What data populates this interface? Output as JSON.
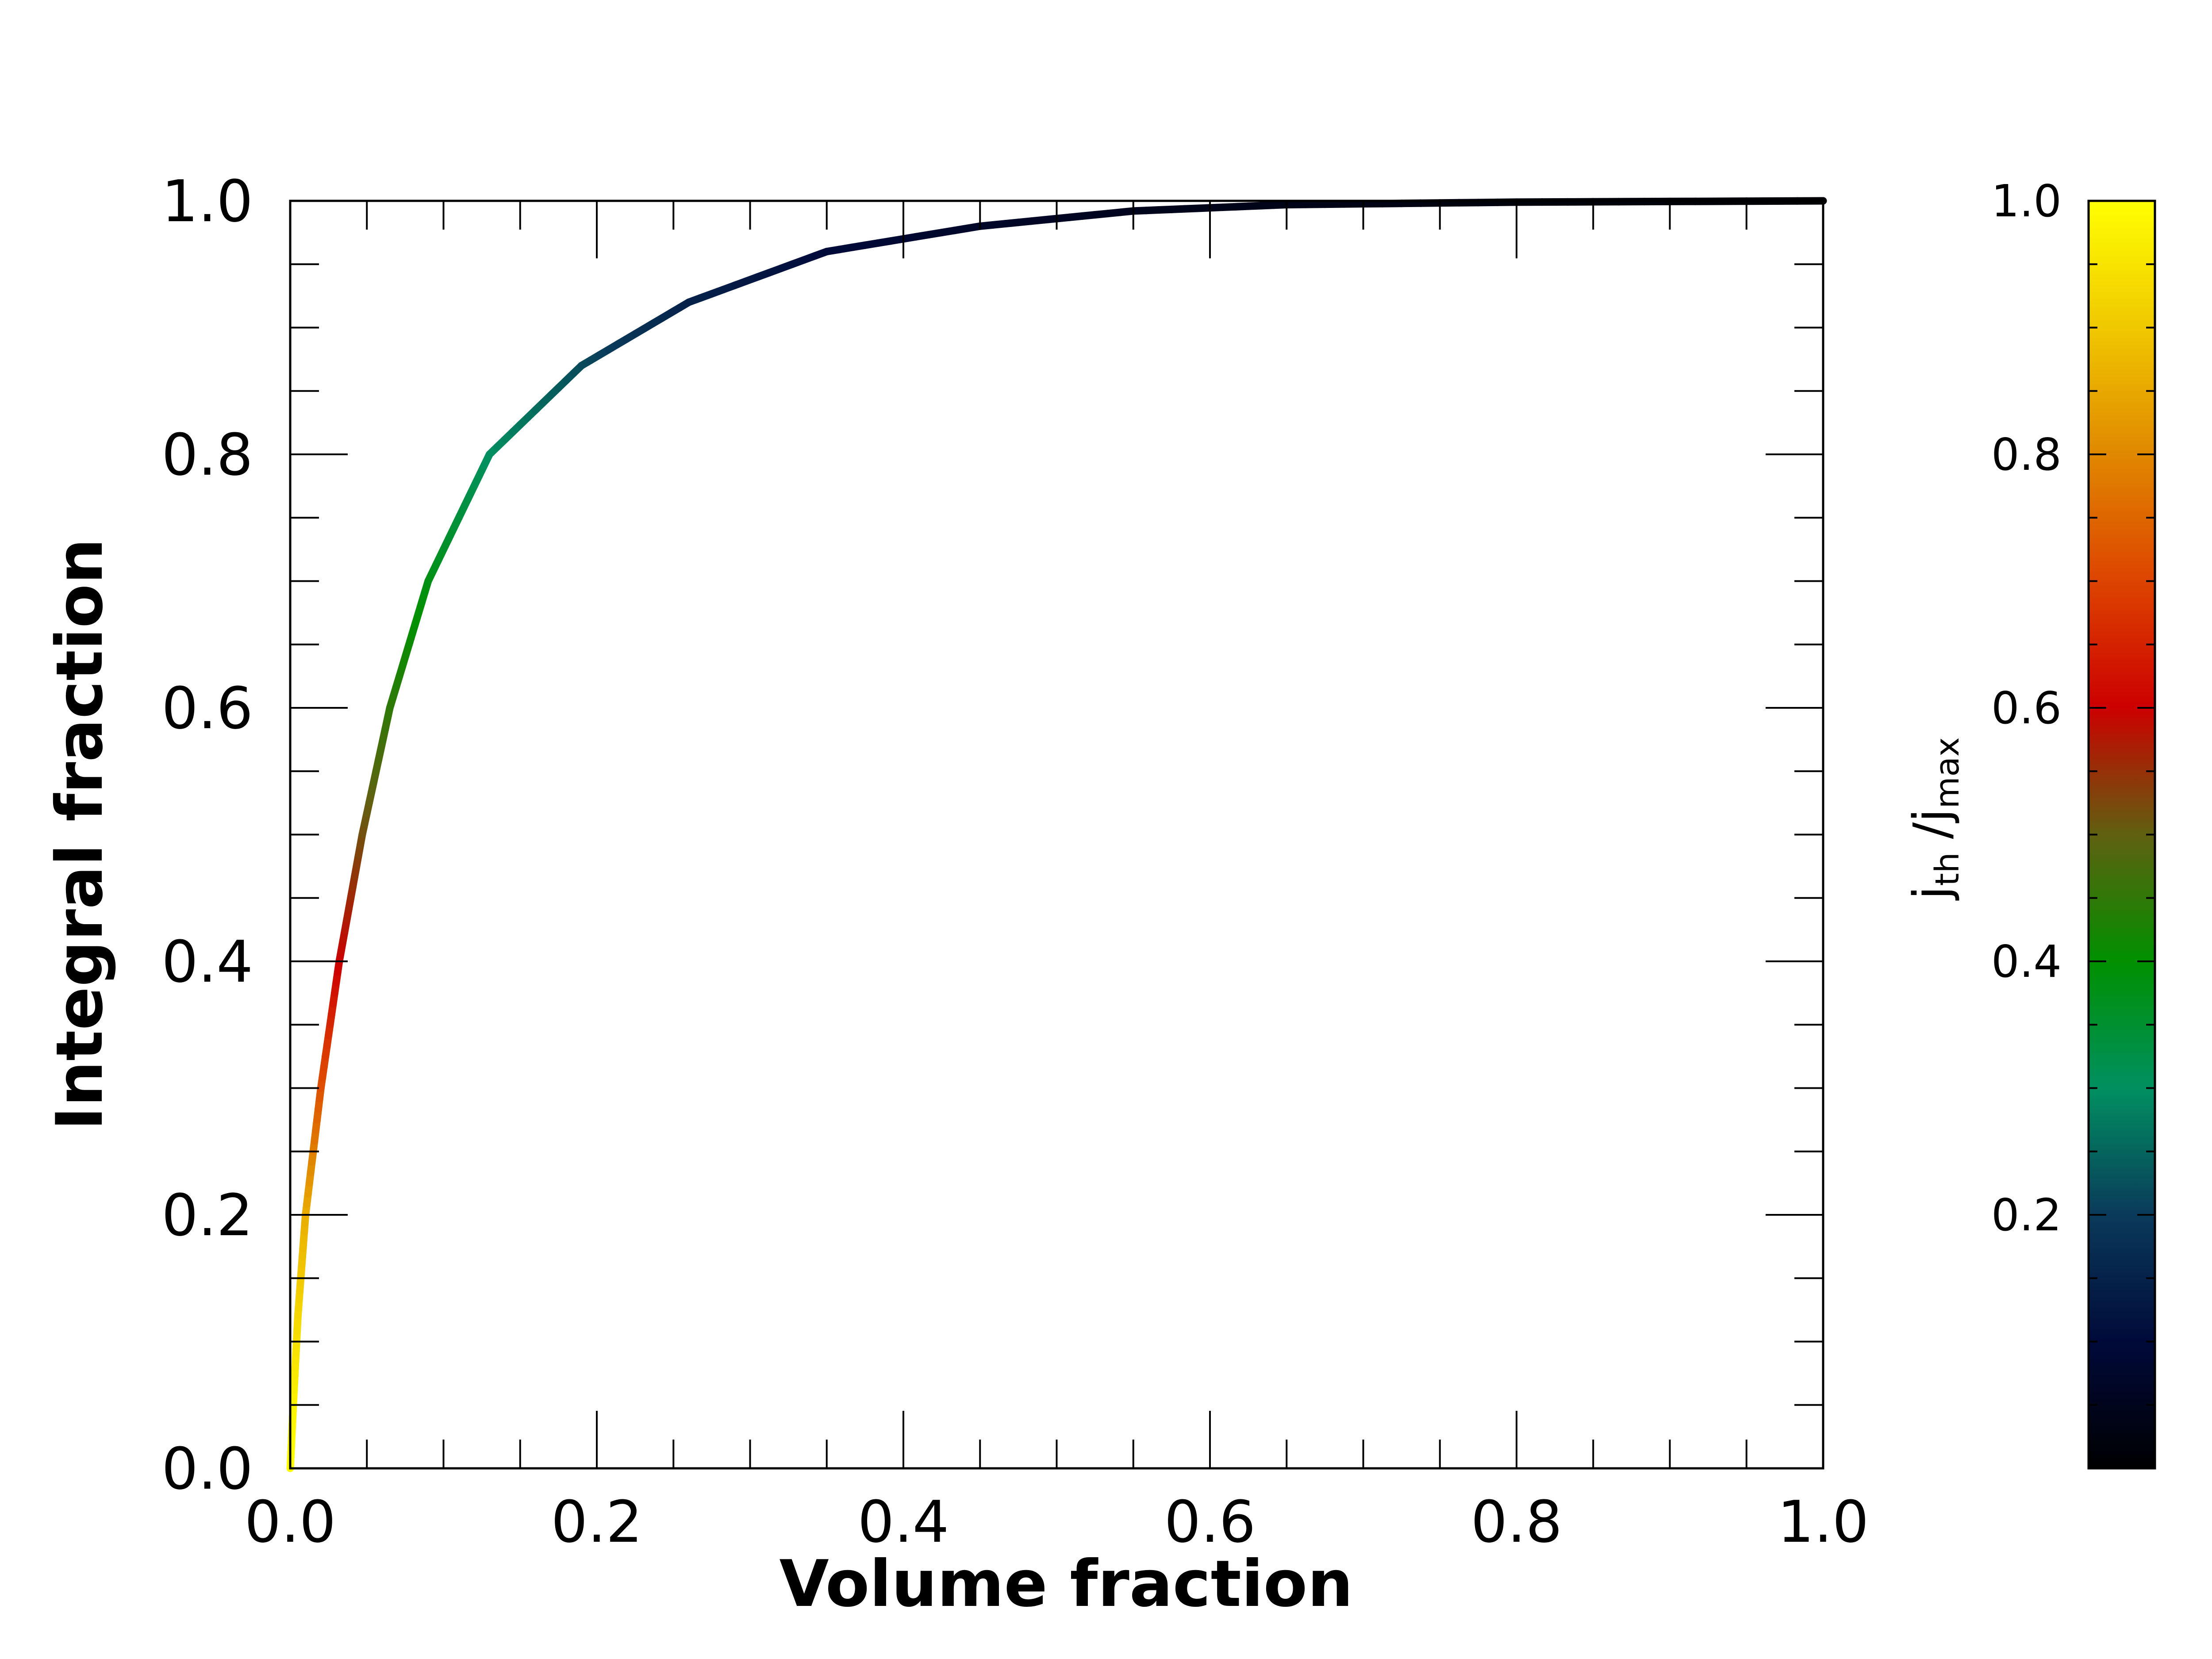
{
  "chart_data": {
    "type": "line",
    "xlabel": "Volume fraction",
    "ylabel": "Integral fraction",
    "xlim": [
      0.0,
      1.0
    ],
    "ylim": [
      0.0,
      1.0
    ],
    "x_ticks": [
      "0.0",
      "0.2",
      "0.4",
      "0.6",
      "0.8",
      "1.0"
    ],
    "y_ticks": [
      "0.0",
      "0.2",
      "0.4",
      "0.6",
      "0.8",
      "1.0"
    ],
    "grid": false,
    "series": [
      {
        "points": [
          {
            "x": 0.0,
            "y": 0.0,
            "c": 1.0
          },
          {
            "x": 0.002,
            "y": 0.05,
            "c": 0.98
          },
          {
            "x": 0.005,
            "y": 0.12,
            "c": 0.93
          },
          {
            "x": 0.01,
            "y": 0.2,
            "c": 0.86
          },
          {
            "x": 0.02,
            "y": 0.3,
            "c": 0.72
          },
          {
            "x": 0.032,
            "y": 0.4,
            "c": 0.6
          },
          {
            "x": 0.047,
            "y": 0.5,
            "c": 0.52
          },
          {
            "x": 0.065,
            "y": 0.6,
            "c": 0.45
          },
          {
            "x": 0.09,
            "y": 0.7,
            "c": 0.38
          },
          {
            "x": 0.13,
            "y": 0.8,
            "c": 0.3
          },
          {
            "x": 0.19,
            "y": 0.87,
            "c": 0.22
          },
          {
            "x": 0.26,
            "y": 0.92,
            "c": 0.15
          },
          {
            "x": 0.35,
            "y": 0.96,
            "c": 0.1
          },
          {
            "x": 0.45,
            "y": 0.98,
            "c": 0.07
          },
          {
            "x": 0.55,
            "y": 0.992,
            "c": 0.05
          },
          {
            "x": 0.65,
            "y": 0.997,
            "c": 0.04
          },
          {
            "x": 0.8,
            "y": 0.999,
            "c": 0.02
          },
          {
            "x": 1.0,
            "y": 1.0,
            "c": 0.01
          }
        ]
      }
    ],
    "colorbar": {
      "title_main_1": "j",
      "title_sub_1": "th",
      "title_main_2": "/j",
      "title_sub_2": "max",
      "ticks": [
        "0.2",
        "0.4",
        "0.6",
        "0.8",
        "1.0"
      ],
      "range": [
        0.0,
        1.0
      ],
      "colormap": [
        {
          "v": 0.0,
          "color": "#000000"
        },
        {
          "v": 0.1,
          "color": "#000a3a"
        },
        {
          "v": 0.2,
          "color": "#0a3a5a"
        },
        {
          "v": 0.3,
          "color": "#009060"
        },
        {
          "v": 0.4,
          "color": "#009000"
        },
        {
          "v": 0.5,
          "color": "#606010"
        },
        {
          "v": 0.6,
          "color": "#cc0000"
        },
        {
          "v": 0.7,
          "color": "#dd4400"
        },
        {
          "v": 0.8,
          "color": "#e08800"
        },
        {
          "v": 0.9,
          "color": "#f0c800"
        },
        {
          "v": 1.0,
          "color": "#ffff00"
        }
      ]
    }
  }
}
